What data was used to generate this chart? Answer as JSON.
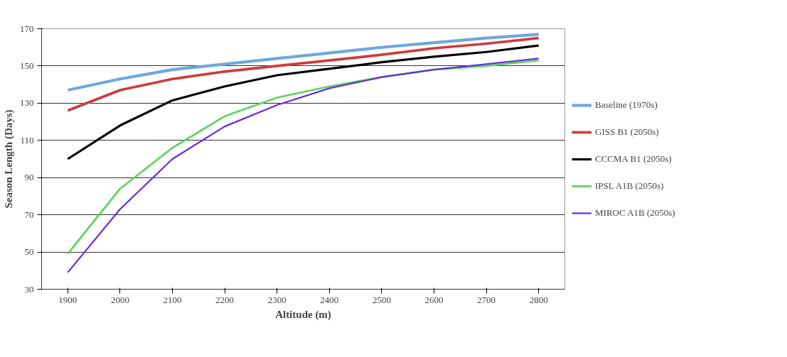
{
  "chart_data": {
    "type": "line",
    "xlabel": "Altitude (m)",
    "ylabel": "Season Length (Days)",
    "categories": [
      "1900",
      "2000",
      "2100",
      "2200",
      "2300",
      "2400",
      "2500",
      "2600",
      "2700",
      "2800"
    ],
    "series": [
      {
        "name": "Baseline (1970s)",
        "color": "#6fa8dc",
        "values": [
          137,
          143,
          148,
          151,
          154,
          157,
          160,
          162.5,
          165,
          167
        ]
      },
      {
        "name": "GISS B1 (2050s)",
        "color": "#d03b3b",
        "values": [
          126,
          137,
          143,
          147,
          150,
          153,
          156,
          159.5,
          162,
          165
        ]
      },
      {
        "name": "CCCMA B1 (2050s)",
        "color": "#000000",
        "values": [
          100,
          118,
          131.5,
          139,
          145,
          148.5,
          152,
          155,
          157.5,
          161
        ]
      },
      {
        "name": "IPSL A1B (2050s)",
        "color": "#5fd35f",
        "values": [
          49,
          84,
          106,
          123,
          133,
          139,
          144,
          148,
          150,
          153
        ]
      },
      {
        "name": "MIROC A1B (2050s)",
        "color": "#6a2be0",
        "values": [
          39,
          73,
          100,
          117.5,
          129,
          138,
          144,
          148,
          151,
          154
        ]
      }
    ],
    "ylim": [
      30,
      170
    ],
    "yticks": [
      30,
      50,
      70,
      90,
      110,
      130,
      150,
      170
    ],
    "grid": "y",
    "legend": "right",
    "marker": "none",
    "line_style": "solid"
  }
}
